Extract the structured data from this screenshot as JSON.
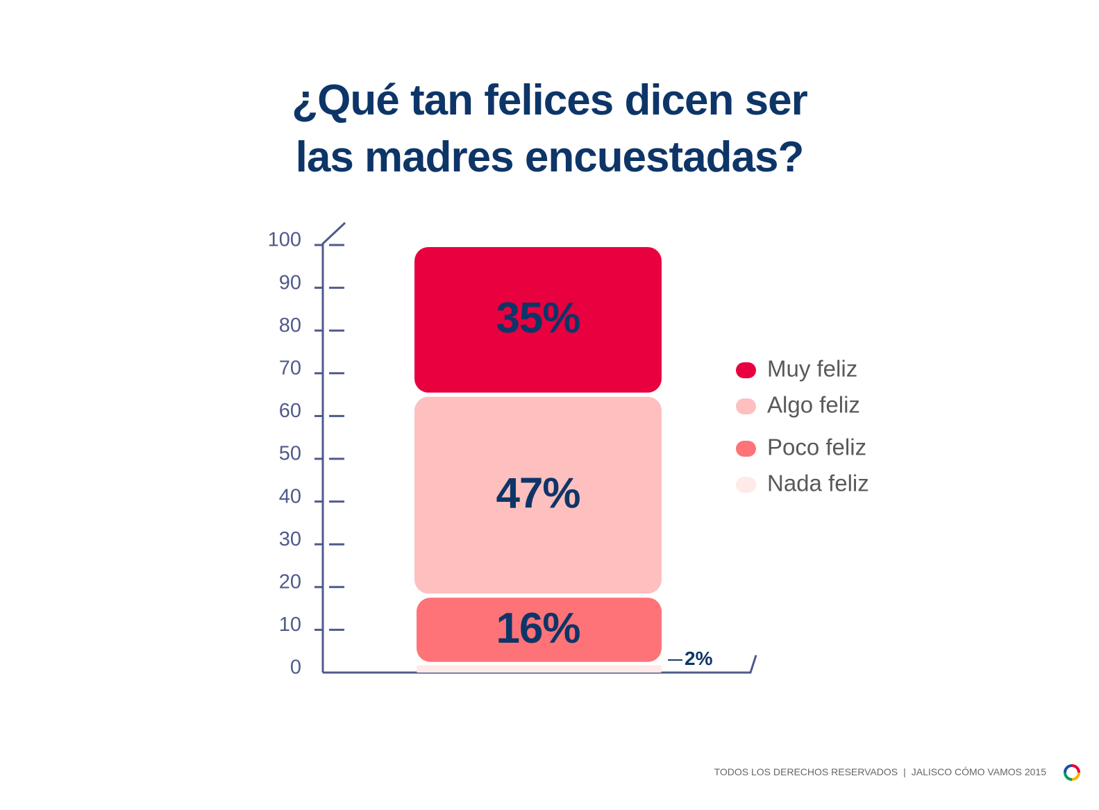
{
  "title_lines": [
    "¿Qué tan felices dicen ser",
    "las madres encuestadas?"
  ],
  "chart_data": {
    "type": "bar",
    "stacked": true,
    "categories": [
      ""
    ],
    "series": [
      {
        "name": "Nada feliz",
        "values": [
          2
        ],
        "label": "2%",
        "color": "#ffe9e9"
      },
      {
        "name": "Poco feliz",
        "values": [
          16
        ],
        "label": "16%",
        "color": "#fd7377"
      },
      {
        "name": "Algo feliz",
        "values": [
          47
        ],
        "label": "47%",
        "color": "#fec0bf"
      },
      {
        "name": "Muy feliz",
        "values": [
          35
        ],
        "label": "35%",
        "color": "#e8003f"
      }
    ],
    "legend": [
      "Muy feliz",
      "Algo feliz",
      "Poco feliz",
      "Nada feliz"
    ],
    "legend_position": "right",
    "yticks": [
      "0",
      "10",
      "20",
      "30",
      "40",
      "50",
      "60",
      "70",
      "80",
      "90",
      "100"
    ],
    "ylim": [
      0,
      100
    ],
    "xlabel": "",
    "ylabel": "",
    "grid": false
  },
  "colors": {
    "title": "#0e3567",
    "axis": "#4f5a8c",
    "tick_label": "#4f5a8c",
    "legend_text": "#595959",
    "value_label": "#0e3567"
  },
  "footer": {
    "rights": "TODOS LOS DERECHOS RESERVADOS",
    "separator": "|",
    "brand": "JALISCO CÓMO VAMOS 2015",
    "logo_icon": "ring-logo-icon"
  }
}
